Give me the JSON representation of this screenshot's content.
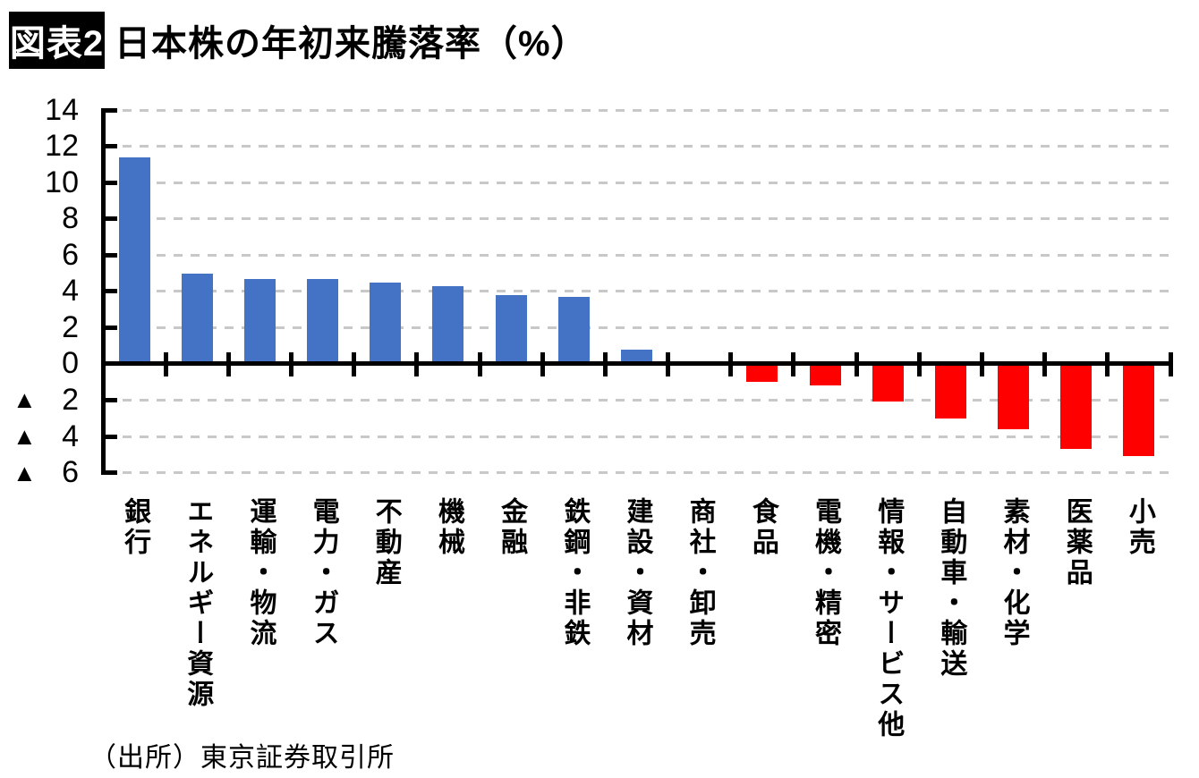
{
  "figure": {
    "tag": "図表2",
    "title": "日本株の年初来騰落率（%）",
    "source": "（出所）東京証券取引所"
  },
  "chart_data": {
    "type": "bar",
    "title": "日本株の年初来騰落率（%）",
    "categories": [
      "銀行",
      "エネルギー資源",
      "運輸・物流",
      "電力・ガス",
      "不動産",
      "機械",
      "金融",
      "鉄鋼・非鉄",
      "建設・資材",
      "商社・卸売",
      "食品",
      "電機・精密",
      "情報・サービス他",
      "自動車・輸送",
      "素材・化学",
      "医薬品",
      "小売"
    ],
    "values": [
      11.4,
      5.0,
      4.7,
      4.7,
      4.5,
      4.3,
      3.8,
      3.7,
      0.8,
      0.0,
      -1.0,
      -1.2,
      -2.1,
      -3.0,
      -3.6,
      -4.7,
      -5.1
    ],
    "xlabel": "",
    "ylabel": "",
    "ylim": [
      -6,
      14
    ],
    "yticks": [
      14,
      12,
      10,
      8,
      6,
      4,
      2,
      0,
      -2,
      -4,
      -6
    ],
    "negative_prefix": "▲",
    "grid": "horizontal-dashed",
    "legend": "none",
    "positive_color": "#4472C4",
    "negative_color": "#FF0000",
    "gridline_color": "#c8c8c8",
    "axis_color": "#000000"
  }
}
